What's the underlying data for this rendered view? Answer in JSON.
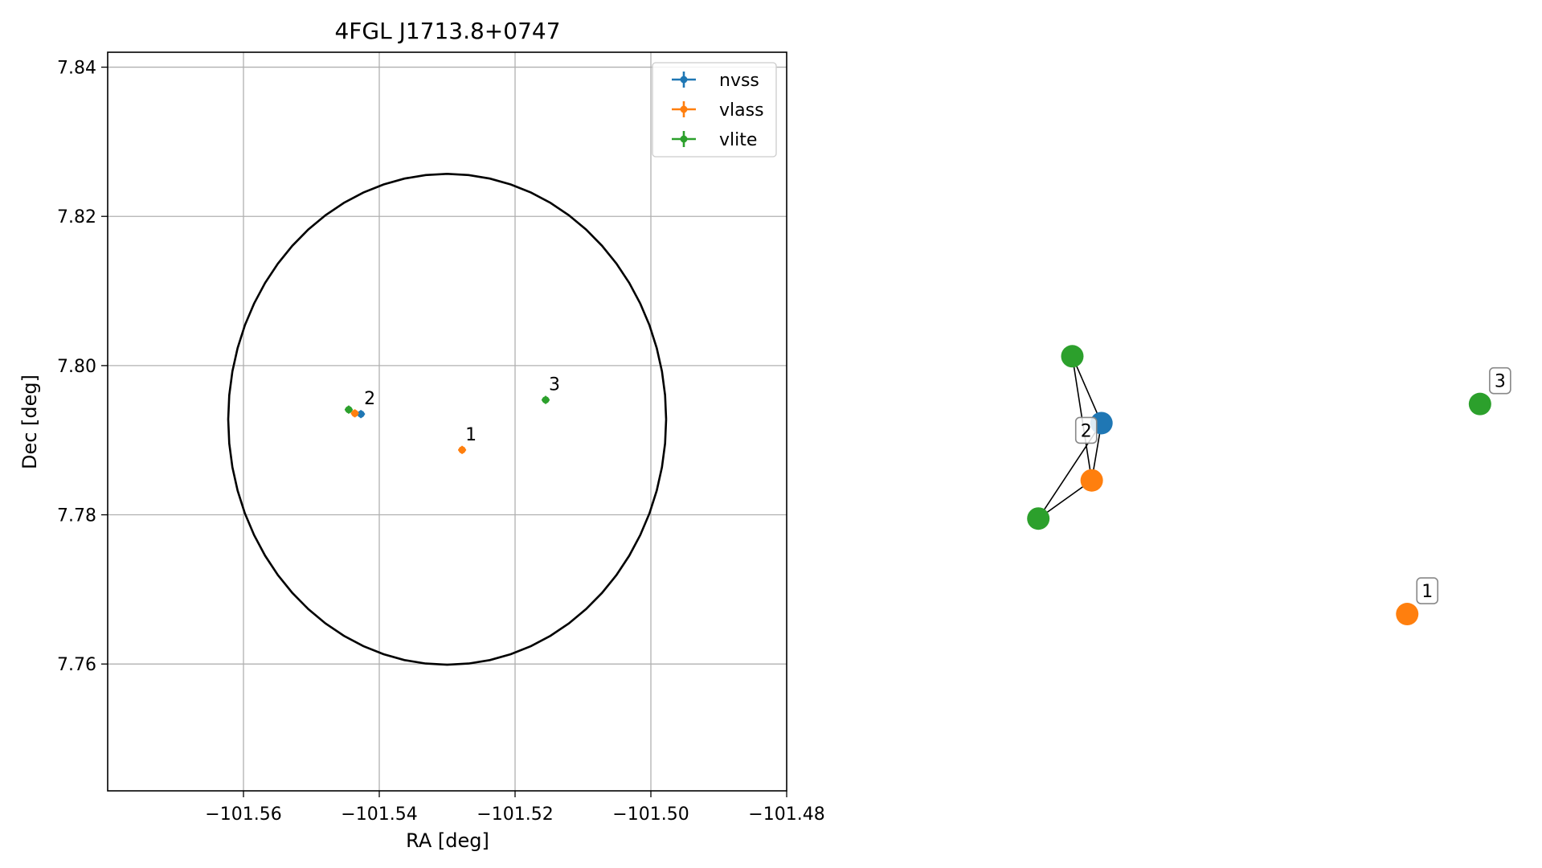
{
  "chart_data": [
    {
      "type": "scatter",
      "title": "4FGL J1713.8+0747",
      "xlabel": "RA [deg]",
      "ylabel": "Dec [deg]",
      "xlim": [
        -101.58,
        -101.48
      ],
      "ylim": [
        7.743,
        7.842
      ],
      "xticks": [
        -101.56,
        -101.54,
        -101.52,
        -101.5,
        -101.48
      ],
      "xtick_labels": [
        "−101.56",
        "−101.54",
        "−101.52",
        "−101.50",
        "−101.48"
      ],
      "yticks": [
        7.76,
        7.78,
        7.8,
        7.82,
        7.84
      ],
      "ytick_labels": [
        "7.76",
        "7.78",
        "7.80",
        "7.82",
        "7.84"
      ],
      "grid": true,
      "legend_position": "upper right",
      "ellipse": {
        "center": [
          -101.53,
          7.7928
        ],
        "width": 0.0645,
        "height": 0.0658,
        "color": "#000000"
      },
      "series": [
        {
          "name": "nvss",
          "color": "#1f77b4",
          "points": [
            {
              "x": -101.5427,
              "y": 7.7935
            }
          ]
        },
        {
          "name": "vlass",
          "color": "#ff7f0e",
          "points": [
            {
              "x": -101.5436,
              "y": 7.7936
            },
            {
              "x": -101.5278,
              "y": 7.7887
            }
          ]
        },
        {
          "name": "vlite",
          "color": "#2ca02c",
          "points": [
            {
              "x": -101.5445,
              "y": 7.7941
            },
            {
              "x": -101.5155,
              "y": 7.7954
            }
          ]
        }
      ],
      "annotations": [
        {
          "text": "2",
          "x": -101.5427,
          "y": 7.7935
        },
        {
          "text": "1",
          "x": -101.5278,
          "y": 7.7887
        },
        {
          "text": "3",
          "x": -101.5155,
          "y": 7.7954
        }
      ]
    },
    {
      "type": "network",
      "nodes": [
        {
          "id": "n1",
          "series": "vlite",
          "color": "#2ca02c",
          "x": 0.12,
          "y": 0.82
        },
        {
          "id": "n2",
          "series": "nvss",
          "color": "#1f77b4",
          "x": 0.18,
          "y": 0.61
        },
        {
          "id": "n3",
          "series": "vlass",
          "color": "#ff7f0e",
          "x": 0.16,
          "y": 0.43
        },
        {
          "id": "n4",
          "series": "vlite",
          "color": "#2ca02c",
          "x": 0.05,
          "y": 0.31
        },
        {
          "id": "n5",
          "series": "vlite",
          "color": "#2ca02c",
          "x": 0.96,
          "y": 0.67
        },
        {
          "id": "n6",
          "series": "vlass",
          "color": "#ff7f0e",
          "x": 0.81,
          "y": 0.01
        }
      ],
      "edges": [
        [
          "n1",
          "n2"
        ],
        [
          "n1",
          "n3"
        ],
        [
          "n2",
          "n3"
        ],
        [
          "n2",
          "n4"
        ],
        [
          "n3",
          "n4"
        ]
      ],
      "labels": [
        {
          "text": "2",
          "node": "n2"
        },
        {
          "text": "3",
          "node": "n5"
        },
        {
          "text": "1",
          "node": "n6"
        }
      ]
    }
  ]
}
